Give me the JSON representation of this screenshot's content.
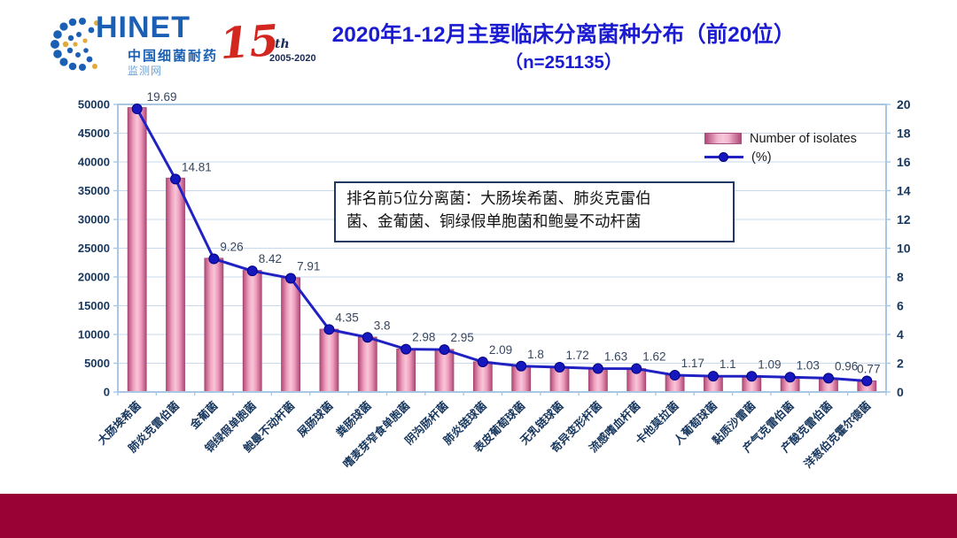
{
  "header": {
    "logo": {
      "brand": "HINET",
      "brand_sub1": "中国细菌耐药",
      "brand_sub2": "监测网",
      "anniversary_number": "15",
      "anniversary_suffix": "th",
      "anniversary_years": "2005-2020"
    },
    "title_line1": "2020年1-12月主要临床分离菌种分布（前20位）",
    "title_line2": "（n=251135）"
  },
  "legend": {
    "items": [
      {
        "label": "Number of isolates",
        "swatch": "pink-bar"
      },
      {
        "label": "(%)",
        "swatch": "blue-line-marker"
      }
    ]
  },
  "annotation": {
    "lines": [
      "排名前5位分离菌：大肠埃希菌、肺炎克雷伯",
      "菌、金葡菌、铜绿假单胞菌和鲍曼不动杆菌"
    ]
  },
  "chart_data": {
    "type": "bar",
    "subtype": "bar+line combo, dual axis",
    "title": "2020年1-12月主要临床分离菌种分布（前20位）",
    "n_total": 251135,
    "categories": [
      "大肠埃希菌",
      "肺炎克雷伯菌",
      "金葡菌",
      "铜绿假单胞菌",
      "鲍曼不动杆菌",
      "屎肠球菌",
      "粪肠球菌",
      "嗜麦芽窄食单胞菌",
      "阴沟肠杆菌",
      "肺炎链球菌",
      "表皮葡萄球菌",
      "无乳链球菌",
      "奇异变形杆菌",
      "流感嗜血杆菌",
      "卡他莫拉菌",
      "人葡萄球菌",
      "黏质沙雷菌",
      "产气克雷伯菌",
      "产酸克雷伯菌",
      "洋葱伯克霍尔德菌"
    ],
    "series": [
      {
        "name": "Number of isolates",
        "type": "bar",
        "axis": "left",
        "values_estimated_from_percent": true,
        "values": [
          49448,
          37193,
          23255,
          21146,
          19865,
          10924,
          9543,
          7484,
          7408,
          5249,
          4520,
          4320,
          4094,
          4068,
          2938,
          2762,
          2737,
          2587,
          2411,
          1934
        ]
      },
      {
        "name": "(%)",
        "type": "line",
        "axis": "right",
        "data_labels_shown": true,
        "values": [
          19.69,
          14.81,
          9.26,
          8.42,
          7.91,
          4.35,
          3.8,
          2.98,
          2.95,
          2.09,
          1.8,
          1.72,
          1.63,
          1.62,
          1.17,
          1.1,
          1.09,
          1.03,
          0.96,
          0.77
        ]
      }
    ],
    "left_axis": {
      "min": 0,
      "max": 50000,
      "ticks": [
        0,
        5000,
        10000,
        15000,
        20000,
        25000,
        30000,
        35000,
        40000,
        45000,
        50000
      ]
    },
    "right_axis": {
      "min": 0,
      "max": 20,
      "ticks": [
        0,
        2,
        4,
        6,
        8,
        10,
        12,
        14,
        16,
        18,
        20
      ]
    },
    "grid": true,
    "legend_position": "inside top-right",
    "x_label_rotation_deg": -45
  },
  "colors": {
    "title_blue": "#1b1bd1",
    "axis_text": "#17375e",
    "data_label_text": "#37465f",
    "line_blue": "#2121c3",
    "marker_fill": "#1717be",
    "bar_edge": "#b04a78",
    "bar_center": "#f7c6d9",
    "plot_border": "#a9c7e3",
    "gridline": "#c9d9ec",
    "footer_maroon": "#990235",
    "annotation_border": "#1f3864",
    "brand_blue": "#1a5fb4",
    "anniversary_red": "#d2261f"
  }
}
